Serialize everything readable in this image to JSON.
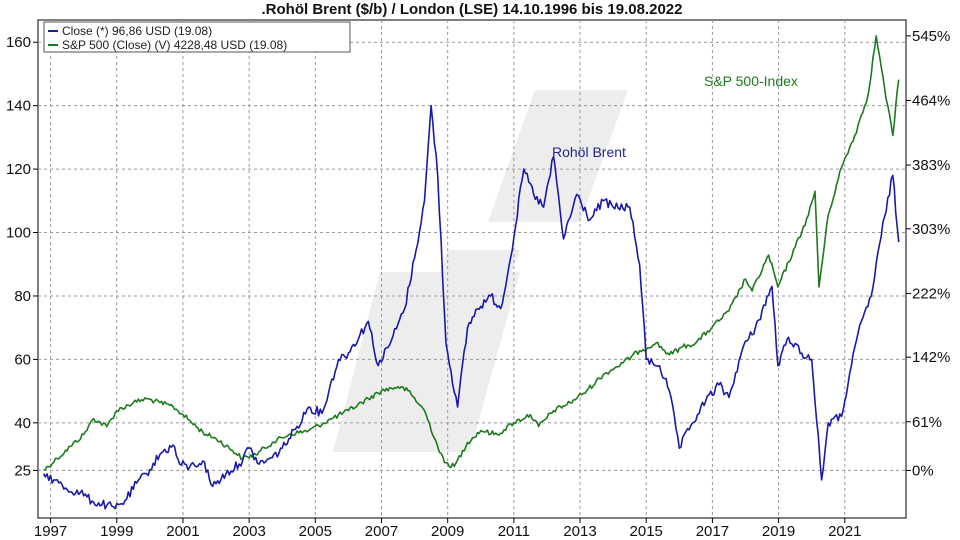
{
  "chart_data": {
    "type": "line",
    "title": ".Rohöl Brent ($/b) / London (LSE) 14.10.1996 bis 19.08.2022",
    "x_range": [
      1996.62,
      2022.85
    ],
    "x_ticks": [
      {
        "value": 1997,
        "label": "1997"
      },
      {
        "value": 1999,
        "label": "1999"
      },
      {
        "value": 2001,
        "label": "2001"
      },
      {
        "value": 2003,
        "label": "2003"
      },
      {
        "value": 2005,
        "label": "2005"
      },
      {
        "value": 2007,
        "label": "2007"
      },
      {
        "value": 2009,
        "label": "2009"
      },
      {
        "value": 2011,
        "label": "2011"
      },
      {
        "value": 2013,
        "label": "2013"
      },
      {
        "value": 2015,
        "label": "2015"
      },
      {
        "value": 2017,
        "label": "2017"
      },
      {
        "value": 2019,
        "label": "2019"
      },
      {
        "value": 2021,
        "label": "2021"
      }
    ],
    "y_left": {
      "range": [
        10,
        167
      ],
      "ticks": [
        {
          "value": 25,
          "label": "25"
        },
        {
          "value": 40,
          "label": "40"
        },
        {
          "value": 60,
          "label": "60"
        },
        {
          "value": 80,
          "label": "80"
        },
        {
          "value": 100,
          "label": "100"
        },
        {
          "value": 120,
          "label": "120"
        },
        {
          "value": 140,
          "label": "140"
        },
        {
          "value": 160,
          "label": "160"
        }
      ]
    },
    "y_right": {
      "ticks": [
        {
          "value": 545,
          "label": "545%"
        },
        {
          "value": 464,
          "label": "464%"
        },
        {
          "value": 383,
          "label": "383%"
        },
        {
          "value": 303,
          "label": "303%"
        },
        {
          "value": 222,
          "label": "222%"
        },
        {
          "value": 142,
          "label": "142%"
        },
        {
          "value": 61,
          "label": "61%"
        },
        {
          "value": 0,
          "label": "0%"
        }
      ]
    },
    "grid": true,
    "legend": {
      "placement": "top-left",
      "entries": [
        {
          "label": "Close (*) 96,86 USD (19.08)",
          "color": "#1a1aa8"
        },
        {
          "label": "S&P 500 (Close) (V) 4228,48 USD (19.08)",
          "color": "#1e7a1e"
        }
      ]
    },
    "annotations": [
      {
        "text": "Rohöl Brent",
        "color": "#24248a"
      },
      {
        "text": "S&P 500-Index",
        "color": "#1e7a1e"
      }
    ],
    "series": [
      {
        "name": "Close (*) 96,86 USD (19.08)",
        "color": "#1a1aa8",
        "axis": "left",
        "x": [
          1996.79,
          1997.1,
          1997.5,
          1997.9,
          1998.3,
          1998.7,
          1998.95,
          1999.3,
          1999.6,
          1999.9,
          2000.3,
          2000.7,
          2000.9,
          2001.2,
          2001.6,
          2001.9,
          2002.3,
          2002.7,
          2003.0,
          2003.3,
          2003.7,
          2004.0,
          2004.4,
          2004.8,
          2005.2,
          2005.7,
          2006.0,
          2006.6,
          2006.9,
          2007.3,
          2007.7,
          2008.0,
          2008.3,
          2008.5,
          2008.7,
          2008.95,
          2009.3,
          2009.6,
          2009.9,
          2010.3,
          2010.6,
          2010.9,
          2011.3,
          2011.6,
          2011.9,
          2012.2,
          2012.5,
          2012.9,
          2013.3,
          2013.7,
          2014.0,
          2014.5,
          2014.8,
          2015.0,
          2015.4,
          2015.7,
          2016.0,
          2016.4,
          2016.8,
          2017.2,
          2017.5,
          2017.9,
          2018.3,
          2018.8,
          2018.98,
          2019.3,
          2019.7,
          2020.0,
          2020.3,
          2020.5,
          2020.9,
          2021.2,
          2021.5,
          2021.8,
          2022.2,
          2022.45,
          2022.63
        ],
        "values": [
          24,
          22,
          19,
          18,
          15,
          14,
          13,
          16,
          21,
          24,
          30,
          33,
          27,
          26,
          28,
          20,
          24,
          27,
          32,
          27,
          29,
          32,
          38,
          45,
          43,
          60,
          62,
          72,
          58,
          66,
          76,
          92,
          110,
          140,
          118,
          65,
          45,
          70,
          76,
          80,
          76,
          92,
          120,
          112,
          108,
          124,
          98,
          112,
          104,
          110,
          108,
          108,
          90,
          60,
          58,
          50,
          32,
          40,
          47,
          52,
          48,
          63,
          70,
          83,
          58,
          67,
          62,
          60,
          22,
          40,
          42,
          58,
          72,
          80,
          105,
          118,
          97
        ]
      },
      {
        "name": "S&P 500 (Close) (V) 4228,48 USD (19.08)",
        "color": "#1e7a1e",
        "axis": "right",
        "x": [
          1996.79,
          1997.2,
          1997.6,
          1998.0,
          1998.3,
          1998.7,
          1999.0,
          1999.5,
          1999.9,
          2000.3,
          2000.7,
          2001.0,
          2001.4,
          2001.7,
          2002.0,
          2002.5,
          2002.8,
          2003.2,
          2003.7,
          2004.2,
          2004.8,
          2005.5,
          2006.0,
          2006.6,
          2007.0,
          2007.5,
          2007.8,
          2008.3,
          2008.7,
          2008.9,
          2009.2,
          2009.6,
          2010.0,
          2010.5,
          2011.0,
          2011.5,
          2011.75,
          2012.2,
          2012.7,
          2013.2,
          2013.7,
          2014.3,
          2014.8,
          2015.3,
          2015.7,
          2016.1,
          2016.5,
          2017.0,
          2017.5,
          2018.0,
          2018.2,
          2018.7,
          2018.98,
          2019.5,
          2019.9,
          2020.1,
          2020.22,
          2020.5,
          2020.9,
          2021.3,
          2021.7,
          2021.95,
          2022.2,
          2022.45,
          2022.63
        ],
        "values": [
          0,
          15,
          30,
          45,
          65,
          55,
          75,
          85,
          90,
          85,
          80,
          70,
          55,
          45,
          40,
          25,
          15,
          20,
          35,
          45,
          50,
          65,
          75,
          90,
          100,
          105,
          100,
          75,
          30,
          10,
          5,
          35,
          50,
          45,
          60,
          70,
          55,
          75,
          85,
          100,
          120,
          135,
          150,
          160,
          145,
          155,
          160,
          180,
          200,
          240,
          225,
          270,
          230,
          280,
          320,
          350,
          230,
          320,
          380,
          420,
          470,
          545,
          480,
          420,
          490
        ]
      }
    ]
  }
}
